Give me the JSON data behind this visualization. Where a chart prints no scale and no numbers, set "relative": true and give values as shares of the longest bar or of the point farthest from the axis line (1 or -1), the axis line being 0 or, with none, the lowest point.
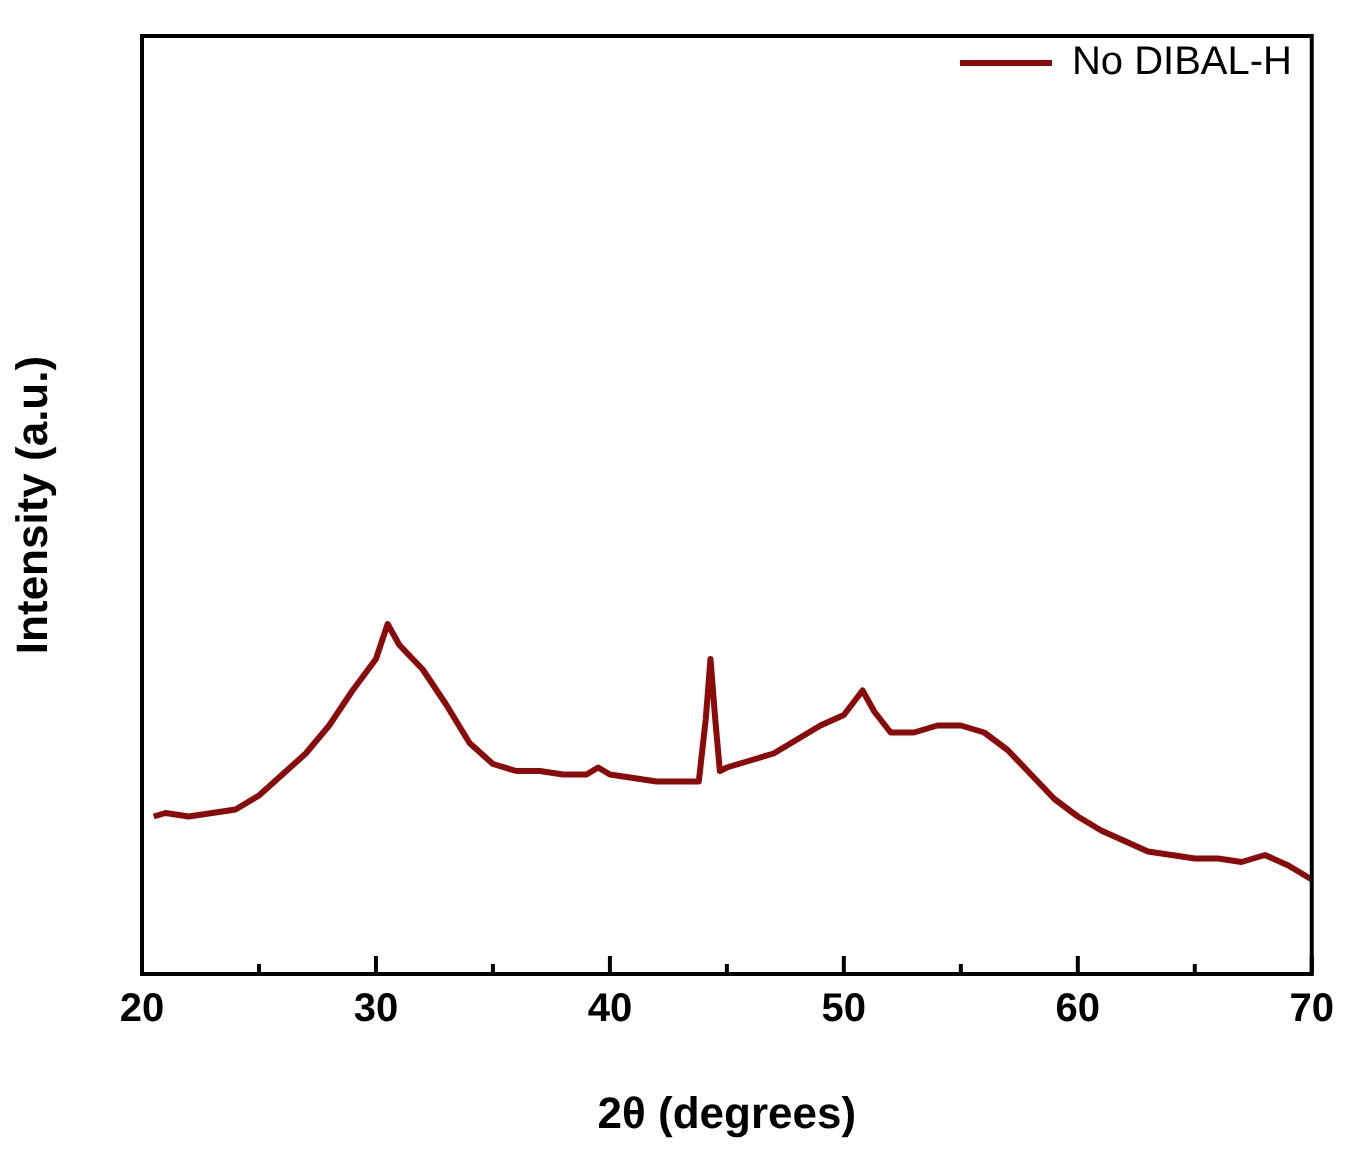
{
  "chart_data": {
    "type": "line",
    "relative": true,
    "xlabel": "2θ (degrees)",
    "ylabel": "Intensity (a.u.)",
    "xlim": [
      20,
      70
    ],
    "xticks": [
      20,
      {
        "value": 25,
        "label": null
      },
      30,
      {
        "value": 35,
        "label": null
      },
      40,
      {
        "value": 45,
        "label": null
      },
      50,
      {
        "value": 55,
        "label": null
      },
      60,
      {
        "value": 65,
        "label": null
      },
      70
    ],
    "legend": "top right",
    "grid": false,
    "marker": "none",
    "series": [
      {
        "name": "No DIBAL-H",
        "color": "#8b0a0a",
        "x": [
          20.5,
          21,
          22,
          23,
          24,
          25,
          26,
          27,
          28,
          29,
          30,
          30.5,
          31,
          32,
          33,
          34,
          35,
          36,
          37,
          38,
          39,
          39.5,
          40,
          41,
          42,
          43,
          43.8,
          44.1,
          44.3,
          44.5,
          44.7,
          45,
          46,
          47,
          48,
          49,
          50,
          50.8,
          51.3,
          52,
          53,
          54,
          55,
          56,
          57,
          58,
          59,
          60,
          61,
          62,
          63,
          64,
          65,
          66,
          67,
          68,
          69,
          70
        ],
        "values": [
          0.45,
          0.46,
          0.45,
          0.46,
          0.47,
          0.51,
          0.57,
          0.63,
          0.71,
          0.81,
          0.9,
          1.0,
          0.94,
          0.87,
          0.77,
          0.66,
          0.6,
          0.58,
          0.58,
          0.57,
          0.57,
          0.59,
          0.57,
          0.56,
          0.55,
          0.55,
          0.55,
          0.73,
          0.9,
          0.73,
          0.58,
          0.59,
          0.61,
          0.63,
          0.67,
          0.71,
          0.74,
          0.81,
          0.75,
          0.69,
          0.69,
          0.71,
          0.71,
          0.69,
          0.64,
          0.57,
          0.5,
          0.45,
          0.41,
          0.38,
          0.35,
          0.34,
          0.33,
          0.33,
          0.32,
          0.34,
          0.31,
          0.27
        ]
      }
    ]
  }
}
